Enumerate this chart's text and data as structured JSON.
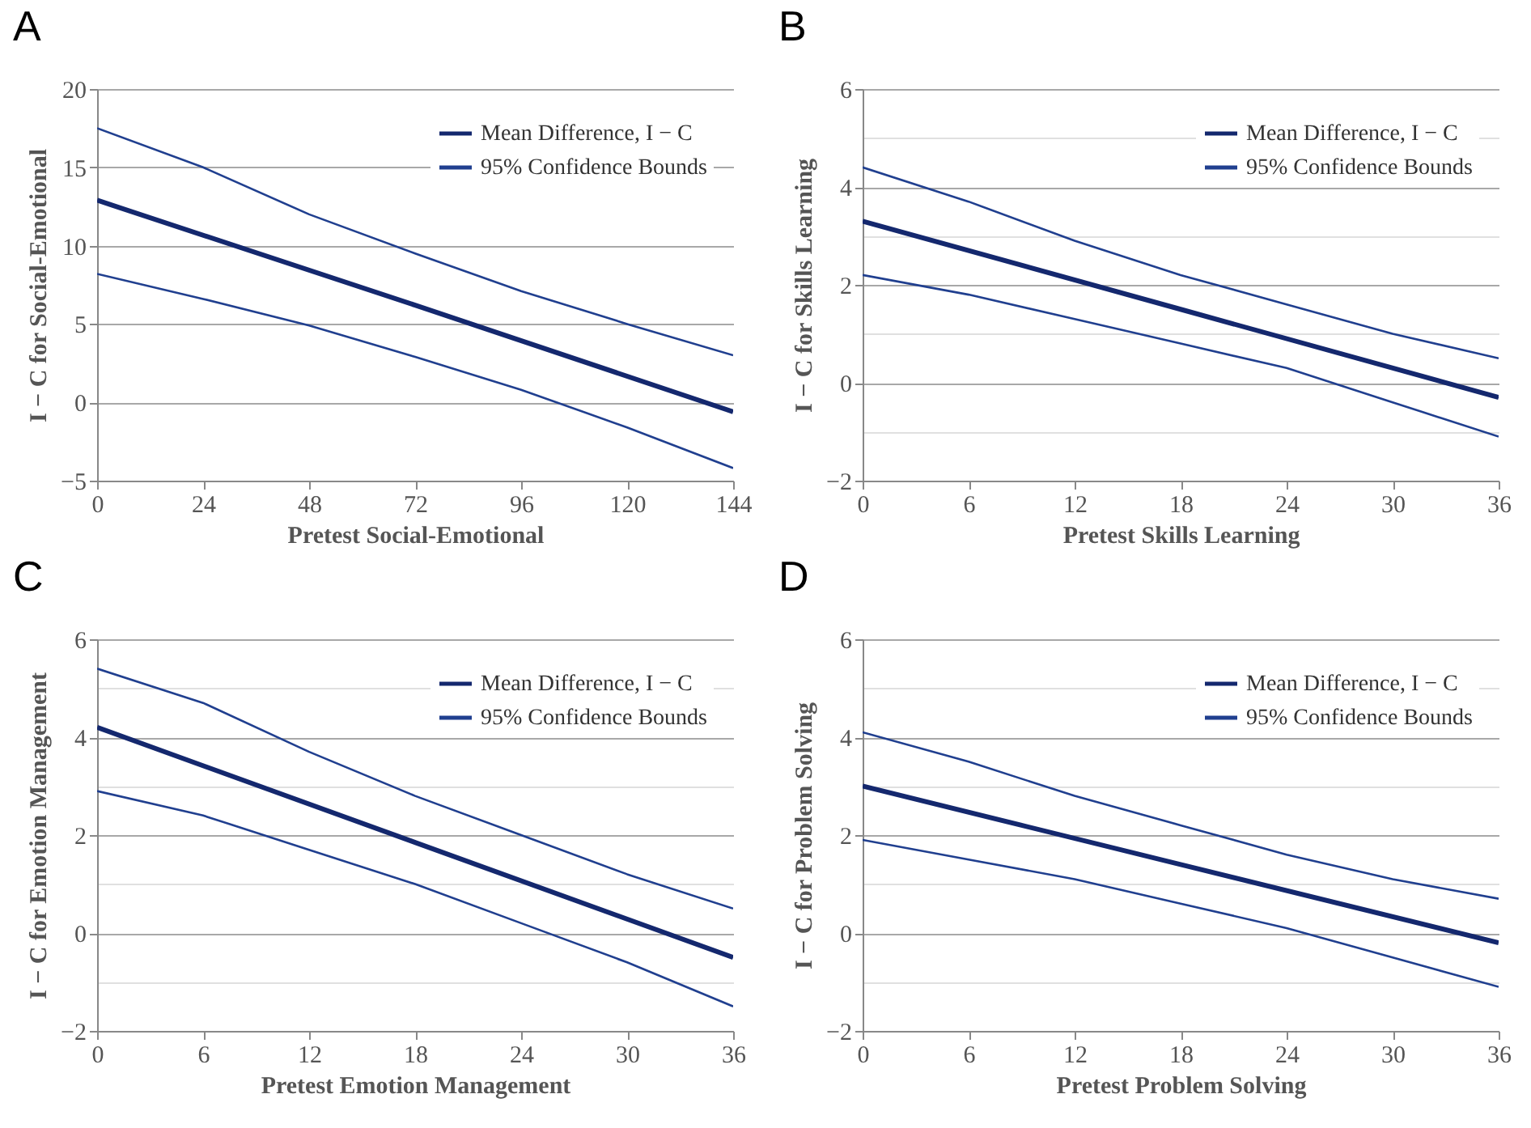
{
  "chart_data": [
    {
      "type": "line",
      "title": "A",
      "xlabel": "Pretest Social-Emotional",
      "ylabel": "I − C for Social-Emotional",
      "xlim": [
        0,
        144
      ],
      "xticks": [
        0,
        24,
        48,
        72,
        96,
        120,
        144
      ],
      "ylim": [
        -5,
        20
      ],
      "yticks": [
        -5,
        0,
        5,
        10,
        15,
        20
      ],
      "grid": "y",
      "legend": "top right",
      "series": [
        {
          "name": "Mean Difference, I − C",
          "color": "#14286e",
          "x": [
            0,
            72,
            144
          ],
          "values": [
            12.9,
            6.2,
            -0.6
          ]
        },
        {
          "name": "95% Confidence Bounds",
          "color": "#203f8f",
          "x": [
            0,
            24,
            48,
            72,
            96,
            120,
            144
          ],
          "values": [
            17.5,
            15.0,
            12.0,
            9.5,
            7.1,
            5.0,
            3.0
          ]
        },
        {
          "color": "#203f8f",
          "x": [
            0,
            24,
            48,
            72,
            96,
            120,
            144
          ],
          "values": [
            8.2,
            6.6,
            4.9,
            2.9,
            0.8,
            -1.6,
            -4.2
          ]
        }
      ]
    },
    {
      "type": "line",
      "title": "B",
      "xlabel": "Pretest Skills Learning",
      "ylabel": "I − C for Skills Learning",
      "xlim": [
        0,
        36
      ],
      "xticks": [
        0,
        6,
        12,
        18,
        24,
        30,
        36
      ],
      "ylim": [
        -2,
        6
      ],
      "yticks": [
        -2,
        {
          "value": -1,
          "label": null
        },
        0,
        {
          "value": 1,
          "label": null
        },
        2,
        {
          "value": 3,
          "label": null
        },
        4,
        {
          "value": 5,
          "label": null
        },
        6
      ],
      "grid": "y",
      "legend": "top right",
      "series": [
        {
          "name": "Mean Difference, I − C",
          "color": "#14286e",
          "x": [
            0,
            18,
            36
          ],
          "values": [
            3.3,
            1.5,
            -0.3
          ]
        },
        {
          "name": "95% Confidence Bounds",
          "color": "#203f8f",
          "x": [
            0,
            6,
            12,
            18,
            24,
            30,
            36
          ],
          "values": [
            4.4,
            3.7,
            2.9,
            2.2,
            1.6,
            1.0,
            0.5
          ]
        },
        {
          "color": "#203f8f",
          "x": [
            0,
            6,
            12,
            18,
            24,
            30,
            36
          ],
          "values": [
            2.2,
            1.8,
            1.3,
            0.8,
            0.3,
            -0.4,
            -1.1
          ]
        }
      ]
    },
    {
      "type": "line",
      "title": "C",
      "xlabel": "Pretest Emotion Management",
      "ylabel": "I − C for Emotion Management",
      "xlim": [
        0,
        36
      ],
      "xticks": [
        0,
        6,
        12,
        18,
        24,
        30,
        36
      ],
      "ylim": [
        -2,
        6
      ],
      "yticks": [
        -2,
        {
          "value": -1,
          "label": null
        },
        0,
        {
          "value": 1,
          "label": null
        },
        2,
        {
          "value": 3,
          "label": null
        },
        4,
        {
          "value": 5,
          "label": null
        },
        6
      ],
      "grid": "y",
      "legend": "top right",
      "series": [
        {
          "name": "Mean Difference, I − C",
          "color": "#14286e",
          "x": [
            0,
            18,
            36
          ],
          "values": [
            4.2,
            1.85,
            -0.5
          ]
        },
        {
          "name": "95% Confidence Bounds",
          "color": "#203f8f",
          "x": [
            0,
            6,
            12,
            18,
            24,
            30,
            36
          ],
          "values": [
            5.4,
            4.7,
            3.7,
            2.8,
            2.0,
            1.2,
            0.5
          ]
        },
        {
          "color": "#203f8f",
          "x": [
            0,
            6,
            12,
            18,
            24,
            30,
            36
          ],
          "values": [
            2.9,
            2.4,
            1.7,
            1.0,
            0.2,
            -0.6,
            -1.5
          ]
        }
      ]
    },
    {
      "type": "line",
      "title": "D",
      "xlabel": "Pretest Problem Solving",
      "ylabel": "I − C for Problem Solving",
      "xlim": [
        0,
        36
      ],
      "xticks": [
        0,
        6,
        12,
        18,
        24,
        30,
        36
      ],
      "ylim": [
        -2,
        6
      ],
      "yticks": [
        -2,
        {
          "value": -1,
          "label": null
        },
        0,
        {
          "value": 1,
          "label": null
        },
        2,
        {
          "value": 3,
          "label": null
        },
        4,
        {
          "value": 5,
          "label": null
        },
        6
      ],
      "grid": "y",
      "legend": "top right",
      "series": [
        {
          "name": "Mean Difference, I − C",
          "color": "#14286e",
          "x": [
            0,
            18,
            36
          ],
          "values": [
            3.0,
            1.4,
            -0.2
          ]
        },
        {
          "name": "95% Confidence Bounds",
          "color": "#203f8f",
          "x": [
            0,
            6,
            12,
            18,
            24,
            30,
            36
          ],
          "values": [
            4.1,
            3.5,
            2.8,
            2.2,
            1.6,
            1.1,
            0.7
          ]
        },
        {
          "color": "#203f8f",
          "x": [
            0,
            6,
            12,
            18,
            24,
            30,
            36
          ],
          "values": [
            1.9,
            1.5,
            1.1,
            0.6,
            0.1,
            -0.5,
            -1.1
          ]
        }
      ]
    }
  ]
}
